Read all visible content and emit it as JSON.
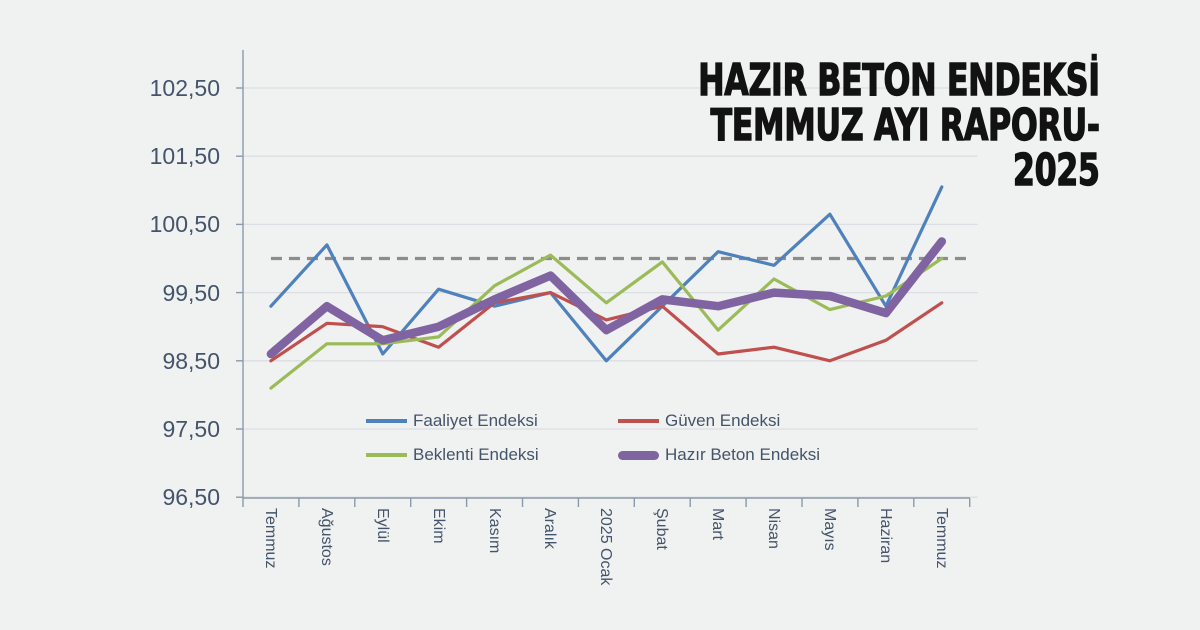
{
  "title": {
    "lines": [
      "HAZIR BETON ENDEKSİ",
      "TEMMUZ AYI RAPORU-",
      "2025"
    ]
  },
  "chart_data": {
    "type": "line",
    "title": "HAZIR BETON ENDEKSİ TEMMUZ AYI RAPORU-2025",
    "categories": [
      "Temmuz",
      "Ağustos",
      "Eylül",
      "Ekim",
      "Kasım",
      "Aralık",
      "2025 Ocak",
      "Şubat",
      "Mart",
      "Nisan",
      "Mayıs",
      "Haziran",
      "Temmuz"
    ],
    "series": [
      {
        "name": "Faaliyet Endeksi",
        "color": "#4F81BD",
        "stroke_width": 3.2,
        "values": [
          99.3,
          100.2,
          98.6,
          99.55,
          99.3,
          99.5,
          98.5,
          99.3,
          100.1,
          99.9,
          100.65,
          99.3,
          101.05
        ]
      },
      {
        "name": "Güven Endeksi",
        "color": "#C0504D",
        "stroke_width": 3.2,
        "values": [
          98.5,
          99.05,
          99.0,
          98.7,
          99.35,
          99.5,
          99.1,
          99.3,
          98.6,
          98.7,
          98.5,
          98.8,
          99.35
        ]
      },
      {
        "name": "Beklenti Endeksi",
        "color": "#9BBB59",
        "stroke_width": 3.2,
        "values": [
          98.1,
          98.75,
          98.75,
          98.85,
          99.6,
          100.05,
          99.35,
          99.95,
          98.95,
          99.7,
          99.25,
          99.45,
          100.0
        ]
      },
      {
        "name": "Hazır Beton Endeksi",
        "color": "#8064A2",
        "stroke_width": 8.5,
        "values": [
          98.6,
          99.3,
          98.8,
          99.0,
          99.4,
          99.75,
          98.95,
          99.4,
          99.3,
          99.5,
          99.45,
          99.2,
          100.25
        ]
      }
    ],
    "reference_line": {
      "value": 100.0,
      "style": "dashed",
      "color": "#8C8C8C"
    },
    "y_axis": {
      "ticks": [
        102.5,
        101.5,
        100.5,
        99.5,
        98.5,
        97.5,
        96.5
      ],
      "labels": [
        "102,50",
        "101,50",
        "100,50",
        "99,50",
        "98,50",
        "97,50",
        "96,50"
      ],
      "min": 96.5,
      "max": 103.1
    },
    "grid": true,
    "legend_position": "bottom-inside",
    "legend_rows": [
      [
        "Faaliyet Endeksi",
        "Güven Endeksi"
      ],
      [
        "Beklenti Endeksi",
        "Hazır Beton Endeksi"
      ]
    ]
  },
  "colors": {
    "background": "#F0F1F1",
    "axis_text": "#44546A",
    "grid_line": "#DBDEE2",
    "axis_line": "#8A9AAB",
    "title_text": "#121212"
  }
}
